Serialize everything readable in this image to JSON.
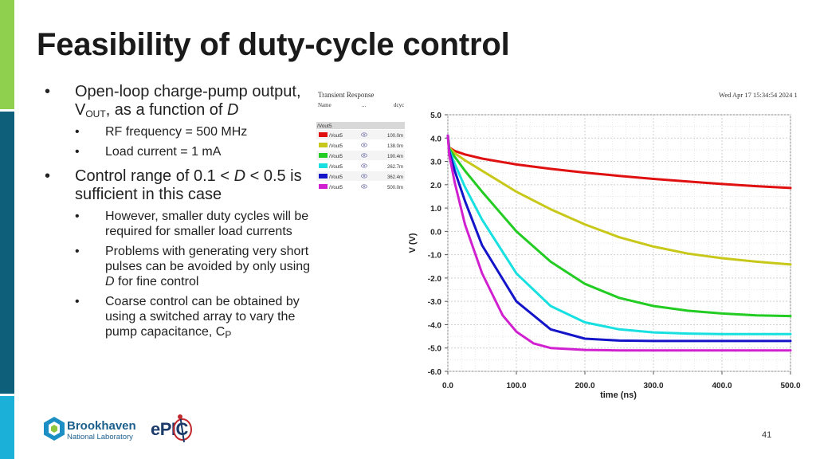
{
  "slide": {
    "title": "Feasibility of duty-cycle control",
    "page_number": "41",
    "bullet_marker": "•",
    "bullets": {
      "b1_text_a": "Open-loop charge-pump output, V",
      "b1_sub": "OUT",
      "b1_text_b": ", as a function of ",
      "b1_var": "D",
      "b1_sub1": "RF frequency = 500 MHz",
      "b1_sub2": "Load current = 1 mA",
      "b2_text_a": "Control range of 0.1 < ",
      "b2_var": "D",
      "b2_text_b": " < 0.5 is sufficient in this case",
      "b2_sub1": "However, smaller duty cycles will be required for smaller load currents",
      "b2_sub2_a": "Problems with generating very short pulses can be avoided by only using ",
      "b2_sub2_var": "D",
      "b2_sub2_b": " for fine control",
      "b2_sub3_a": "Coarse control can be obtained by using a switched array to vary the pump capacitance, C",
      "b2_sub3_sub": "P"
    },
    "logos": {
      "bnl_name": "Brookhaven",
      "bnl_sub": "National Laboratory",
      "epic": "ePIC"
    },
    "colors": {
      "green_bar": "#8fd14f",
      "teal_bar": "#0e5f7a",
      "cyan_bar": "#1ab0d8"
    }
  },
  "chart_header": {
    "title": "Transient Response",
    "timestamp": "Wed Apr 17 15:34:54 2024  1",
    "col_name": "Name",
    "col_dots": "...",
    "col_dcyc": "dcyc",
    "group": "/Vout5"
  },
  "chart_data": {
    "type": "line",
    "xlabel": "time (ns)",
    "ylabel": "V (V)",
    "xlim": [
      0,
      500
    ],
    "ylim": [
      -6,
      5
    ],
    "x_ticks": [
      "0.0",
      "100.0",
      "200.0",
      "300.0",
      "400.0",
      "500.0"
    ],
    "y_ticks": [
      "5.0",
      "4.0",
      "3.0",
      "2.0",
      "1.0",
      "0.0",
      "-1.0",
      "-2.0",
      "-3.0",
      "-4.0",
      "-5.0",
      "-6.0"
    ],
    "grid": true,
    "legend_position": "left",
    "series": [
      {
        "name": "/Vout5",
        "dcyc": "100.0m",
        "color": "#e01010",
        "x": [
          0,
          2,
          10,
          25,
          50,
          100,
          150,
          200,
          250,
          300,
          350,
          400,
          450,
          500
        ],
        "y": [
          4.1,
          3.6,
          3.45,
          3.3,
          3.12,
          2.87,
          2.68,
          2.52,
          2.38,
          2.25,
          2.14,
          2.03,
          1.94,
          1.86
        ]
      },
      {
        "name": "/Vout5",
        "dcyc": "138.0m",
        "color": "#c8c81a",
        "x": [
          0,
          2,
          10,
          25,
          50,
          100,
          150,
          200,
          250,
          300,
          350,
          400,
          450,
          500
        ],
        "y": [
          4.1,
          3.6,
          3.35,
          3.05,
          2.6,
          1.7,
          0.95,
          0.3,
          -0.25,
          -0.65,
          -0.95,
          -1.15,
          -1.3,
          -1.42
        ]
      },
      {
        "name": "/Vout5",
        "dcyc": "190.4m",
        "color": "#22cc22",
        "x": [
          0,
          2,
          10,
          25,
          50,
          100,
          150,
          200,
          250,
          300,
          350,
          400,
          450,
          500
        ],
        "y": [
          4.1,
          3.55,
          3.2,
          2.6,
          1.7,
          0.0,
          -1.3,
          -2.25,
          -2.85,
          -3.2,
          -3.4,
          -3.52,
          -3.6,
          -3.63
        ]
      },
      {
        "name": "/Vout5",
        "dcyc": "262.7m",
        "color": "#18e0e0",
        "x": [
          0,
          2,
          10,
          25,
          50,
          100,
          150,
          200,
          250,
          300,
          350,
          400,
          450,
          500
        ],
        "y": [
          4.1,
          3.5,
          2.9,
          1.9,
          0.5,
          -1.8,
          -3.2,
          -3.9,
          -4.2,
          -4.33,
          -4.38,
          -4.4,
          -4.4,
          -4.4
        ]
      },
      {
        "name": "/Vout5",
        "dcyc": "362.4m",
        "color": "#1414c8",
        "x": [
          0,
          2,
          10,
          25,
          50,
          100,
          150,
          200,
          250,
          300,
          350,
          400,
          450,
          500
        ],
        "y": [
          4.1,
          3.45,
          2.6,
          1.3,
          -0.6,
          -3.0,
          -4.2,
          -4.6,
          -4.68,
          -4.7,
          -4.7,
          -4.7,
          -4.7,
          -4.7
        ]
      },
      {
        "name": "/Vout5",
        "dcyc": "500.0m",
        "color": "#d020d0",
        "x": [
          0,
          2,
          10,
          25,
          50,
          80,
          100,
          125,
          150,
          200,
          250,
          300,
          400,
          500
        ],
        "y": [
          4.1,
          3.3,
          2.1,
          0.3,
          -1.8,
          -3.6,
          -4.3,
          -4.8,
          -5.0,
          -5.08,
          -5.1,
          -5.1,
          -5.1,
          -5.1
        ]
      }
    ]
  }
}
